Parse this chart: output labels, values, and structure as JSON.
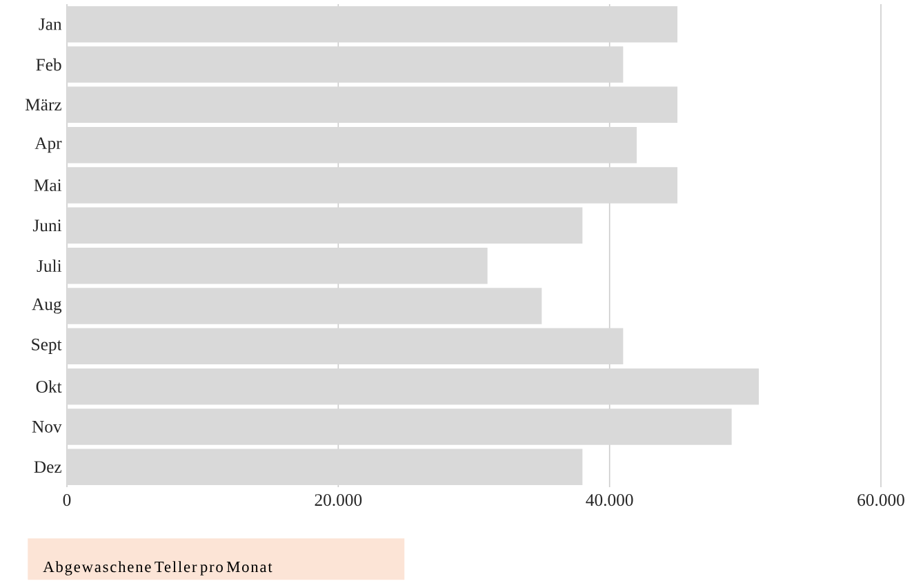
{
  "chart_data": {
    "type": "bar",
    "orientation": "horizontal",
    "title": "Abgewaschene Teller pro Monat",
    "categories": [
      "Jan",
      "Feb",
      "März",
      "Apr",
      "Mai",
      "Juni",
      "Juli",
      "Aug",
      "Sept",
      "Okt",
      "Nov",
      "Dez"
    ],
    "values": [
      45000,
      41000,
      45000,
      42000,
      45000,
      38000,
      31000,
      35000,
      41000,
      51000,
      49000,
      38000
    ],
    "color": "#d9d9d9",
    "xlim": [
      0,
      60000
    ],
    "xticks": [
      0,
      {
        "value": 20000,
        "label": "20.000"
      },
      {
        "value": 40000,
        "label": "40.000"
      },
      {
        "value": 60000,
        "label": "60.000"
      }
    ],
    "grid": "x"
  }
}
